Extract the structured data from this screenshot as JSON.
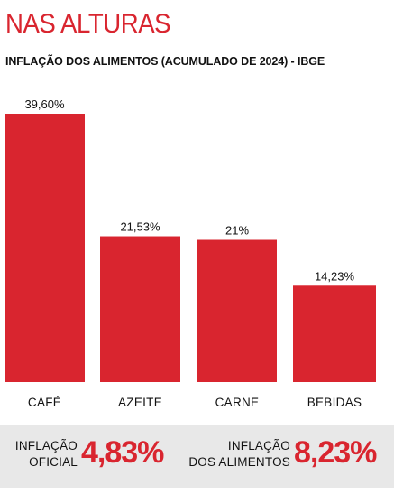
{
  "header": {
    "title": "NAS ALTURAS",
    "subtitle": "INFLAÇÃO DOS ALIMENTOS (ACUMULADO DE 2024) - IBGE"
  },
  "colors": {
    "accent": "#d9252f",
    "footer_bg": "#e8e8e8"
  },
  "chart_data": {
    "type": "bar",
    "categories": [
      "CAFÉ",
      "AZEITE",
      "CARNE",
      "BEBIDAS"
    ],
    "values": [
      39.6,
      21.53,
      21,
      14.23
    ],
    "value_labels": [
      "39,60%",
      "21,53%",
      "21%",
      "14,23%"
    ],
    "title": "INFLAÇÃO DOS ALIMENTOS (ACUMULADO DE 2024) - IBGE",
    "ylim": [
      0,
      39.6
    ],
    "grid": false,
    "legend": "none"
  },
  "footer": {
    "official": {
      "label_line1": "INFLAÇÃO",
      "label_line2": "OFICIAL",
      "value": "4,83%"
    },
    "food": {
      "label_line1": "INFLAÇÃO",
      "label_line2": "DOS ALIMENTOS",
      "value": "8,23%"
    }
  }
}
